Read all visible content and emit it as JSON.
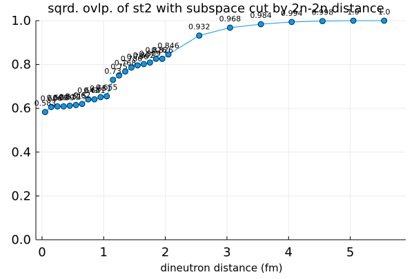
{
  "chart_data": {
    "type": "line",
    "title": "sqrd. ovlp. of st2 with subspace cut by 2n-2n distance",
    "xlabel": "dineutron distance (fm)",
    "ylabel": "",
    "xlim": [
      -0.1,
      5.9
    ],
    "ylim": [
      0.0,
      1.0
    ],
    "x_ticks": [
      0,
      1,
      2,
      3,
      4,
      5
    ],
    "y_ticks": [
      0.0,
      0.2,
      0.4,
      0.6,
      0.8,
      1.0
    ],
    "x_tick_labels": [
      "0",
      "1",
      "2",
      "3",
      "4",
      "5"
    ],
    "y_tick_labels": [
      "0.0",
      "0.2",
      "0.4",
      "0.6",
      "0.8",
      "1.0"
    ],
    "grid": true,
    "legend": "none",
    "series": [
      {
        "x": [
          0.05,
          0.15,
          0.25,
          0.35,
          0.45,
          0.55,
          0.65,
          0.75,
          0.85,
          0.95,
          1.05,
          1.15,
          1.25,
          1.35,
          1.45,
          1.55,
          1.65,
          1.75,
          1.85,
          1.95,
          2.05,
          2.55,
          3.05,
          3.55,
          4.05,
          4.55,
          5.05,
          5.55
        ],
        "values": [
          0.583,
          0.606,
          0.609,
          0.609,
          0.612,
          0.615,
          0.62,
          0.641,
          0.641,
          0.651,
          0.655,
          0.73,
          0.75,
          0.768,
          0.786,
          0.796,
          0.802,
          0.809,
          0.826,
          0.826,
          0.846,
          0.932,
          0.968,
          0.984,
          0.994,
          0.998,
          1.0,
          1.0
        ],
        "point_labels": [
          "0.583",
          "0.606",
          "0.609",
          "0.609",
          "0.612",
          "0.615",
          "0.62",
          "0.641",
          "0.641",
          "0.651",
          "0.655",
          "0.73",
          "0.75",
          "0.768",
          "0.786",
          "0.796",
          "0.802",
          "0.809",
          "0.826",
          "0.826",
          "0.846",
          "0.932",
          "0.968",
          "0.984",
          "0.994",
          "0.998",
          "1.0",
          "1.0"
        ]
      }
    ],
    "colors": {
      "line": "#009af9",
      "marker_fill": "#009af9",
      "marker_edge": "#000000",
      "grid": "#ebebeb",
      "axis": "#000000"
    }
  }
}
